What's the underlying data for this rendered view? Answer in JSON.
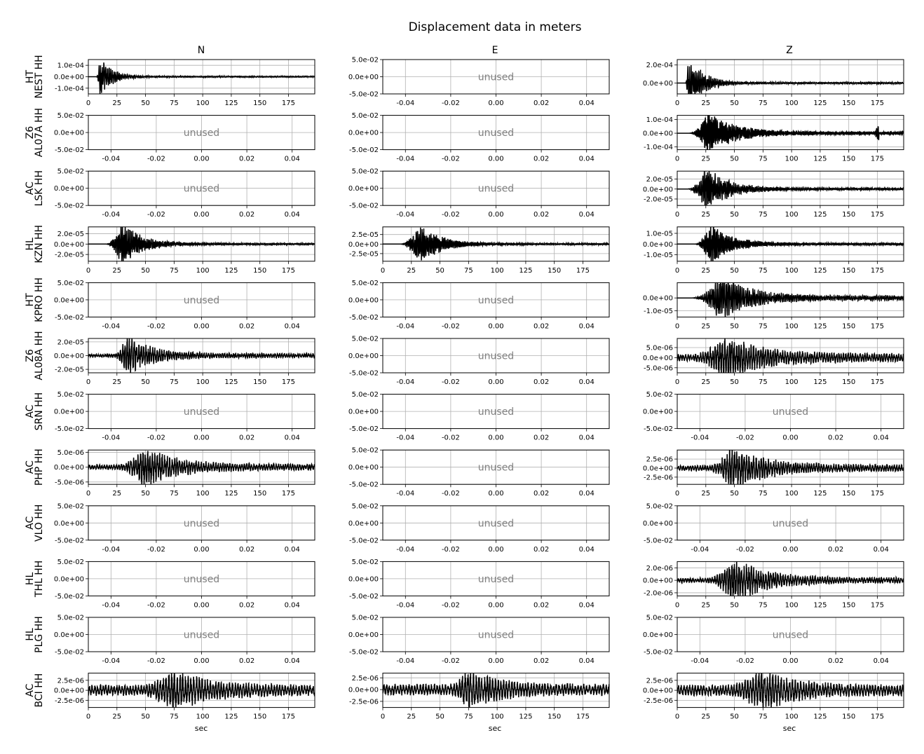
{
  "figure": {
    "title": "Displacement data in meters",
    "xlabel": "sec",
    "unused_label": "unused",
    "columns": [
      "N",
      "E",
      "Z"
    ]
  },
  "chart_data": {
    "type": "line",
    "grid": true,
    "line_color": "#000000",
    "time_xlim": [
      0,
      198
    ],
    "time_ticks": [
      0,
      25,
      50,
      75,
      100,
      125,
      150,
      175
    ],
    "unused_xlim": [
      -0.05,
      0.05
    ],
    "unused_x_ticks": [
      "-0.04",
      "-0.02",
      "0.00",
      "0.02",
      "0.04"
    ],
    "unused_y_ticks": [
      "5.0e-02",
      "0.0e+00",
      "-5.0e-02"
    ],
    "rows": [
      {
        "network": "HT",
        "station": "NEST HH",
        "panels": [
          {
            "unused": false,
            "ylim": [
              -0.00015,
              0.00015
            ],
            "y_ticks": [
              {
                "v": 0.0001,
                "label": "1.0e-04"
              },
              {
                "v": 0,
                "label": "0.0e+00"
              },
              {
                "v": -0.0001,
                "label": "-1.0e-04"
              }
            ],
            "onset": 7,
            "peak_t": 10,
            "decay": 10,
            "pre_amp": 0,
            "coda_amp": 0.03,
            "period": 1.5
          },
          {
            "unused": true
          },
          {
            "unused": false,
            "ylim": [
              -0.00012,
              0.00026
            ],
            "y_ticks": [
              {
                "v": 0.0002,
                "label": "2.0e-04"
              },
              {
                "v": 0,
                "label": "0.0e+00"
              }
            ],
            "onset": 7,
            "peak_t": 10,
            "decay": 12,
            "pre_amp": 0,
            "coda_amp": 0.03,
            "period": 1.5
          }
        ]
      },
      {
        "network": "Z6",
        "station": "AL07A HH",
        "panels": [
          {
            "unused": true
          },
          {
            "unused": true
          },
          {
            "unused": false,
            "ylim": [
              -0.00012,
              0.00013
            ],
            "y_ticks": [
              {
                "v": 0.0001,
                "label": "1.0e-04"
              },
              {
                "v": 0,
                "label": "0.0e+00"
              },
              {
                "v": -0.0001,
                "label": "-1.0e-04"
              }
            ],
            "onset": 10,
            "peak_t": 27,
            "decay": 22,
            "pre_amp": 0,
            "coda_amp": 0.07,
            "period": 1.2,
            "blip_t": 175
          }
        ]
      },
      {
        "network": "AC",
        "station": "LSK HH",
        "panels": [
          {
            "unused": true
          },
          {
            "unused": true
          },
          {
            "unused": false,
            "ylim": [
              -3.3e-05,
              3.6e-05
            ],
            "y_ticks": [
              {
                "v": 2e-05,
                "label": "2.0e-05"
              },
              {
                "v": 0,
                "label": "0.0e+00"
              },
              {
                "v": -2e-05,
                "label": "-2.0e-05"
              }
            ],
            "onset": 8,
            "peak_t": 25,
            "decay": 20,
            "pre_amp": 0,
            "coda_amp": 0.05,
            "period": 1.4
          }
        ]
      },
      {
        "network": "HL",
        "station": "KZN HH",
        "panels": [
          {
            "unused": false,
            "ylim": [
              -3.3e-05,
              3.3e-05
            ],
            "y_ticks": [
              {
                "v": 2e-05,
                "label": "2.0e-05"
              },
              {
                "v": 0,
                "label": "0.0e+00"
              },
              {
                "v": -2e-05,
                "label": "-2.0e-05"
              }
            ],
            "onset": 15,
            "peak_t": 29,
            "decay": 18,
            "pre_amp": 0,
            "coda_amp": 0.04,
            "period": 1.3
          },
          {
            "unused": false,
            "ylim": [
              -4.5e-05,
              4.5e-05
            ],
            "y_ticks": [
              {
                "v": 2.5e-05,
                "label": "2.5e-05"
              },
              {
                "v": 0,
                "label": "0.0e+00"
              },
              {
                "v": -2.5e-05,
                "label": "-2.5e-05"
              }
            ],
            "onset": 15,
            "peak_t": 31,
            "decay": 18,
            "pre_amp": 0,
            "coda_amp": 0.04,
            "period": 1.3
          },
          {
            "unused": false,
            "ylim": [
              -1.6e-05,
              1.6e-05
            ],
            "y_ticks": [
              {
                "v": 1e-05,
                "label": "1.0e-05"
              },
              {
                "v": 0,
                "label": "0.0e+00"
              },
              {
                "v": -1e-05,
                "label": "-1.0e-05"
              }
            ],
            "onset": 15,
            "peak_t": 29,
            "decay": 18,
            "pre_amp": 0,
            "coda_amp": 0.05,
            "period": 1.3
          }
        ]
      },
      {
        "network": "HT",
        "station": "KPRO HH",
        "panels": [
          {
            "unused": true
          },
          {
            "unused": true
          },
          {
            "unused": false,
            "ylim": [
              -1.5e-05,
              1.2e-05
            ],
            "y_ticks": [
              {
                "v": 0,
                "label": "0.0e+00"
              },
              {
                "v": -1e-05,
                "label": "-1.0e-05"
              }
            ],
            "onset": 12,
            "peak_t": 38,
            "decay": 25,
            "pre_amp": 0,
            "coda_amp": 0.1,
            "period": 1.6
          }
        ]
      },
      {
        "network": "Z6",
        "station": "AL08A HH",
        "panels": [
          {
            "unused": false,
            "ylim": [
              -2.5e-05,
              2.5e-05
            ],
            "y_ticks": [
              {
                "v": 2e-05,
                "label": "2.0e-05"
              },
              {
                "v": 0,
                "label": "0.0e+00"
              },
              {
                "v": -2e-05,
                "label": "-2.0e-05"
              }
            ],
            "onset": 20,
            "peak_t": 34,
            "decay": 22,
            "pre_amp": 0.06,
            "coda_amp": 0.1,
            "period": 2.0
          },
          {
            "unused": true
          },
          {
            "unused": false,
            "ylim": [
              -7.5e-06,
              9.5e-06
            ],
            "y_ticks": [
              {
                "v": 5e-06,
                "label": "5.0e-06"
              },
              {
                "v": 0,
                "label": "0.0e+00"
              },
              {
                "v": -5e-06,
                "label": "-5.0e-06"
              }
            ],
            "onset": 12,
            "peak_t": 42,
            "decay": 30,
            "pre_amp": 0.15,
            "coda_amp": 0.18,
            "period": 2.2
          }
        ]
      },
      {
        "network": "AC",
        "station": "SRN HH",
        "panels": [
          {
            "unused": true
          },
          {
            "unused": true
          },
          {
            "unused": true
          }
        ]
      },
      {
        "network": "AC",
        "station": "PHP HH",
        "panels": [
          {
            "unused": false,
            "ylim": [
              -5.8e-06,
              5.8e-06
            ],
            "y_ticks": [
              {
                "v": 5e-06,
                "label": "5.0e-06"
              },
              {
                "v": 0,
                "label": "0.0e+00"
              },
              {
                "v": -5e-06,
                "label": "-5.0e-06"
              }
            ],
            "onset": 25,
            "peak_t": 48,
            "decay": 28,
            "pre_amp": 0.12,
            "coda_amp": 0.15,
            "period": 2.2
          },
          {
            "unused": true
          },
          {
            "unused": false,
            "ylim": [
              -4.5e-06,
              5e-06
            ],
            "y_ticks": [
              {
                "v": 2.5e-06,
                "label": "2.5e-06"
              },
              {
                "v": 0,
                "label": "0.0e+00"
              },
              {
                "v": -2.5e-06,
                "label": "-2.5e-06"
              }
            ],
            "onset": 25,
            "peak_t": 48,
            "decay": 30,
            "pre_amp": 0.12,
            "coda_amp": 0.15,
            "period": 2.2
          }
        ]
      },
      {
        "network": "AC",
        "station": "VLO HH",
        "panels": [
          {
            "unused": true
          },
          {
            "unused": true
          },
          {
            "unused": true
          }
        ]
      },
      {
        "network": "HL",
        "station": "THL HH",
        "panels": [
          {
            "unused": true
          },
          {
            "unused": true
          },
          {
            "unused": false,
            "ylim": [
              -2.5e-06,
              3e-06
            ],
            "y_ticks": [
              {
                "v": 2e-06,
                "label": "2.0e-06"
              },
              {
                "v": 0,
                "label": "0.0e+00"
              },
              {
                "v": -2e-06,
                "label": "-2.0e-06"
              }
            ],
            "onset": 25,
            "peak_t": 49,
            "decay": 28,
            "pre_amp": 0.1,
            "coda_amp": 0.12,
            "period": 2.2
          }
        ]
      },
      {
        "network": "HL",
        "station": "PLG HH",
        "panels": [
          {
            "unused": true
          },
          {
            "unused": true
          },
          {
            "unused": true
          }
        ]
      },
      {
        "network": "AC",
        "station": "BCI HH",
        "panels": [
          {
            "unused": false,
            "ylim": [
              -4.3e-06,
              4.3e-06
            ],
            "y_ticks": [
              {
                "v": 2.5e-06,
                "label": "2.5e-06"
              },
              {
                "v": 0,
                "label": "0.0e+00"
              },
              {
                "v": -2.5e-06,
                "label": "-2.5e-06"
              }
            ],
            "onset": 40,
            "peak_t": 75,
            "decay": 30,
            "pre_amp": 0.25,
            "coda_amp": 0.25,
            "period": 2.5
          },
          {
            "unused": false,
            "ylim": [
              -3.8e-06,
              3.5e-06
            ],
            "y_ticks": [
              {
                "v": 2.5e-06,
                "label": "2.5e-06"
              },
              {
                "v": 0,
                "label": "0.0e+00"
              },
              {
                "v": -2.5e-06,
                "label": "-2.5e-06"
              }
            ],
            "onset": 60,
            "peak_t": 73,
            "decay": 25,
            "pre_amp": 0.25,
            "coda_amp": 0.25,
            "period": 2.5
          },
          {
            "unused": false,
            "ylim": [
              -4.3e-06,
              4.3e-06
            ],
            "y_ticks": [
              {
                "v": 2.5e-06,
                "label": "2.5e-06"
              },
              {
                "v": 0,
                "label": "0.0e+00"
              },
              {
                "v": -2.5e-06,
                "label": "-2.5e-06"
              }
            ],
            "onset": 40,
            "peak_t": 73,
            "decay": 30,
            "pre_amp": 0.25,
            "coda_amp": 0.25,
            "period": 2.5
          }
        ]
      }
    ]
  }
}
